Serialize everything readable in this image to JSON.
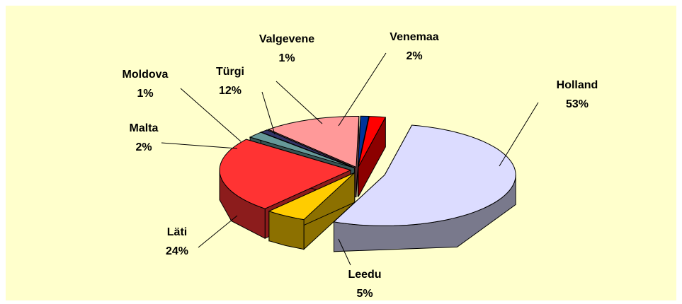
{
  "chart_data": {
    "type": "pie3d",
    "categories": [
      "Holland",
      "Leedu",
      "Läti",
      "Malta",
      "Moldova",
      "Türgi",
      "Valgevene",
      "Venemaa"
    ],
    "values": [
      53,
      5,
      24,
      2,
      1,
      12,
      1,
      2
    ],
    "value_labels": [
      "53%",
      "5%",
      "24%",
      "2%",
      "1%",
      "12%",
      "1%",
      "2%"
    ],
    "colors": [
      "#dcdcff",
      "#ffcc00",
      "#ff3333",
      "#669999",
      "#333366",
      "#ff9999",
      "#003399",
      "#ff0000"
    ]
  }
}
